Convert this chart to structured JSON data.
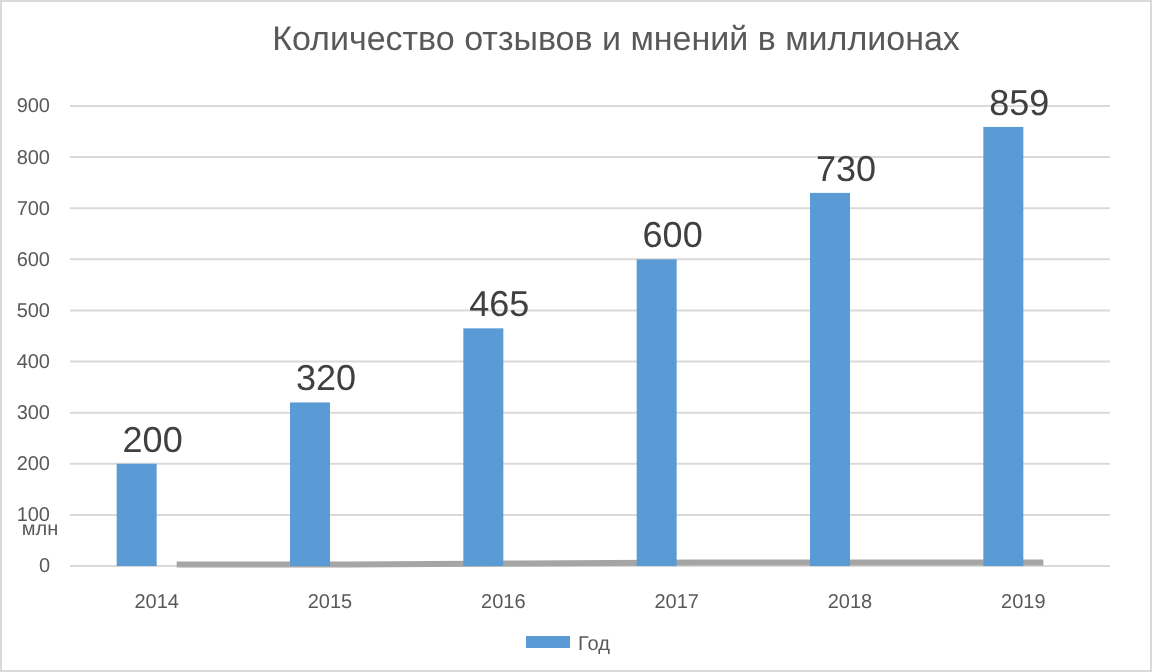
{
  "chart_data": {
    "type": "bar",
    "title": "Количество отзывов и мнений в миллионах",
    "ylabel": "млн",
    "categories": [
      "2014",
      "2015",
      "2016",
      "2017",
      "2018",
      "2019"
    ],
    "series": [
      {
        "name": "Год",
        "color": "#5b9bd5",
        "values": [
          200,
          320,
          465,
          600,
          730,
          859
        ],
        "value_labels": [
          "200",
          "320",
          "465",
          "600",
          "730",
          "859"
        ]
      },
      {
        "type": "line",
        "color": "#a5a5a5",
        "values": [
          3,
          3,
          5,
          7,
          7,
          7
        ]
      }
    ],
    "ylim": [
      0,
      900
    ],
    "yticks": [
      0,
      100,
      200,
      300,
      400,
      500,
      600,
      700,
      800,
      900
    ],
    "grid": "y",
    "legend": "bottom"
  }
}
